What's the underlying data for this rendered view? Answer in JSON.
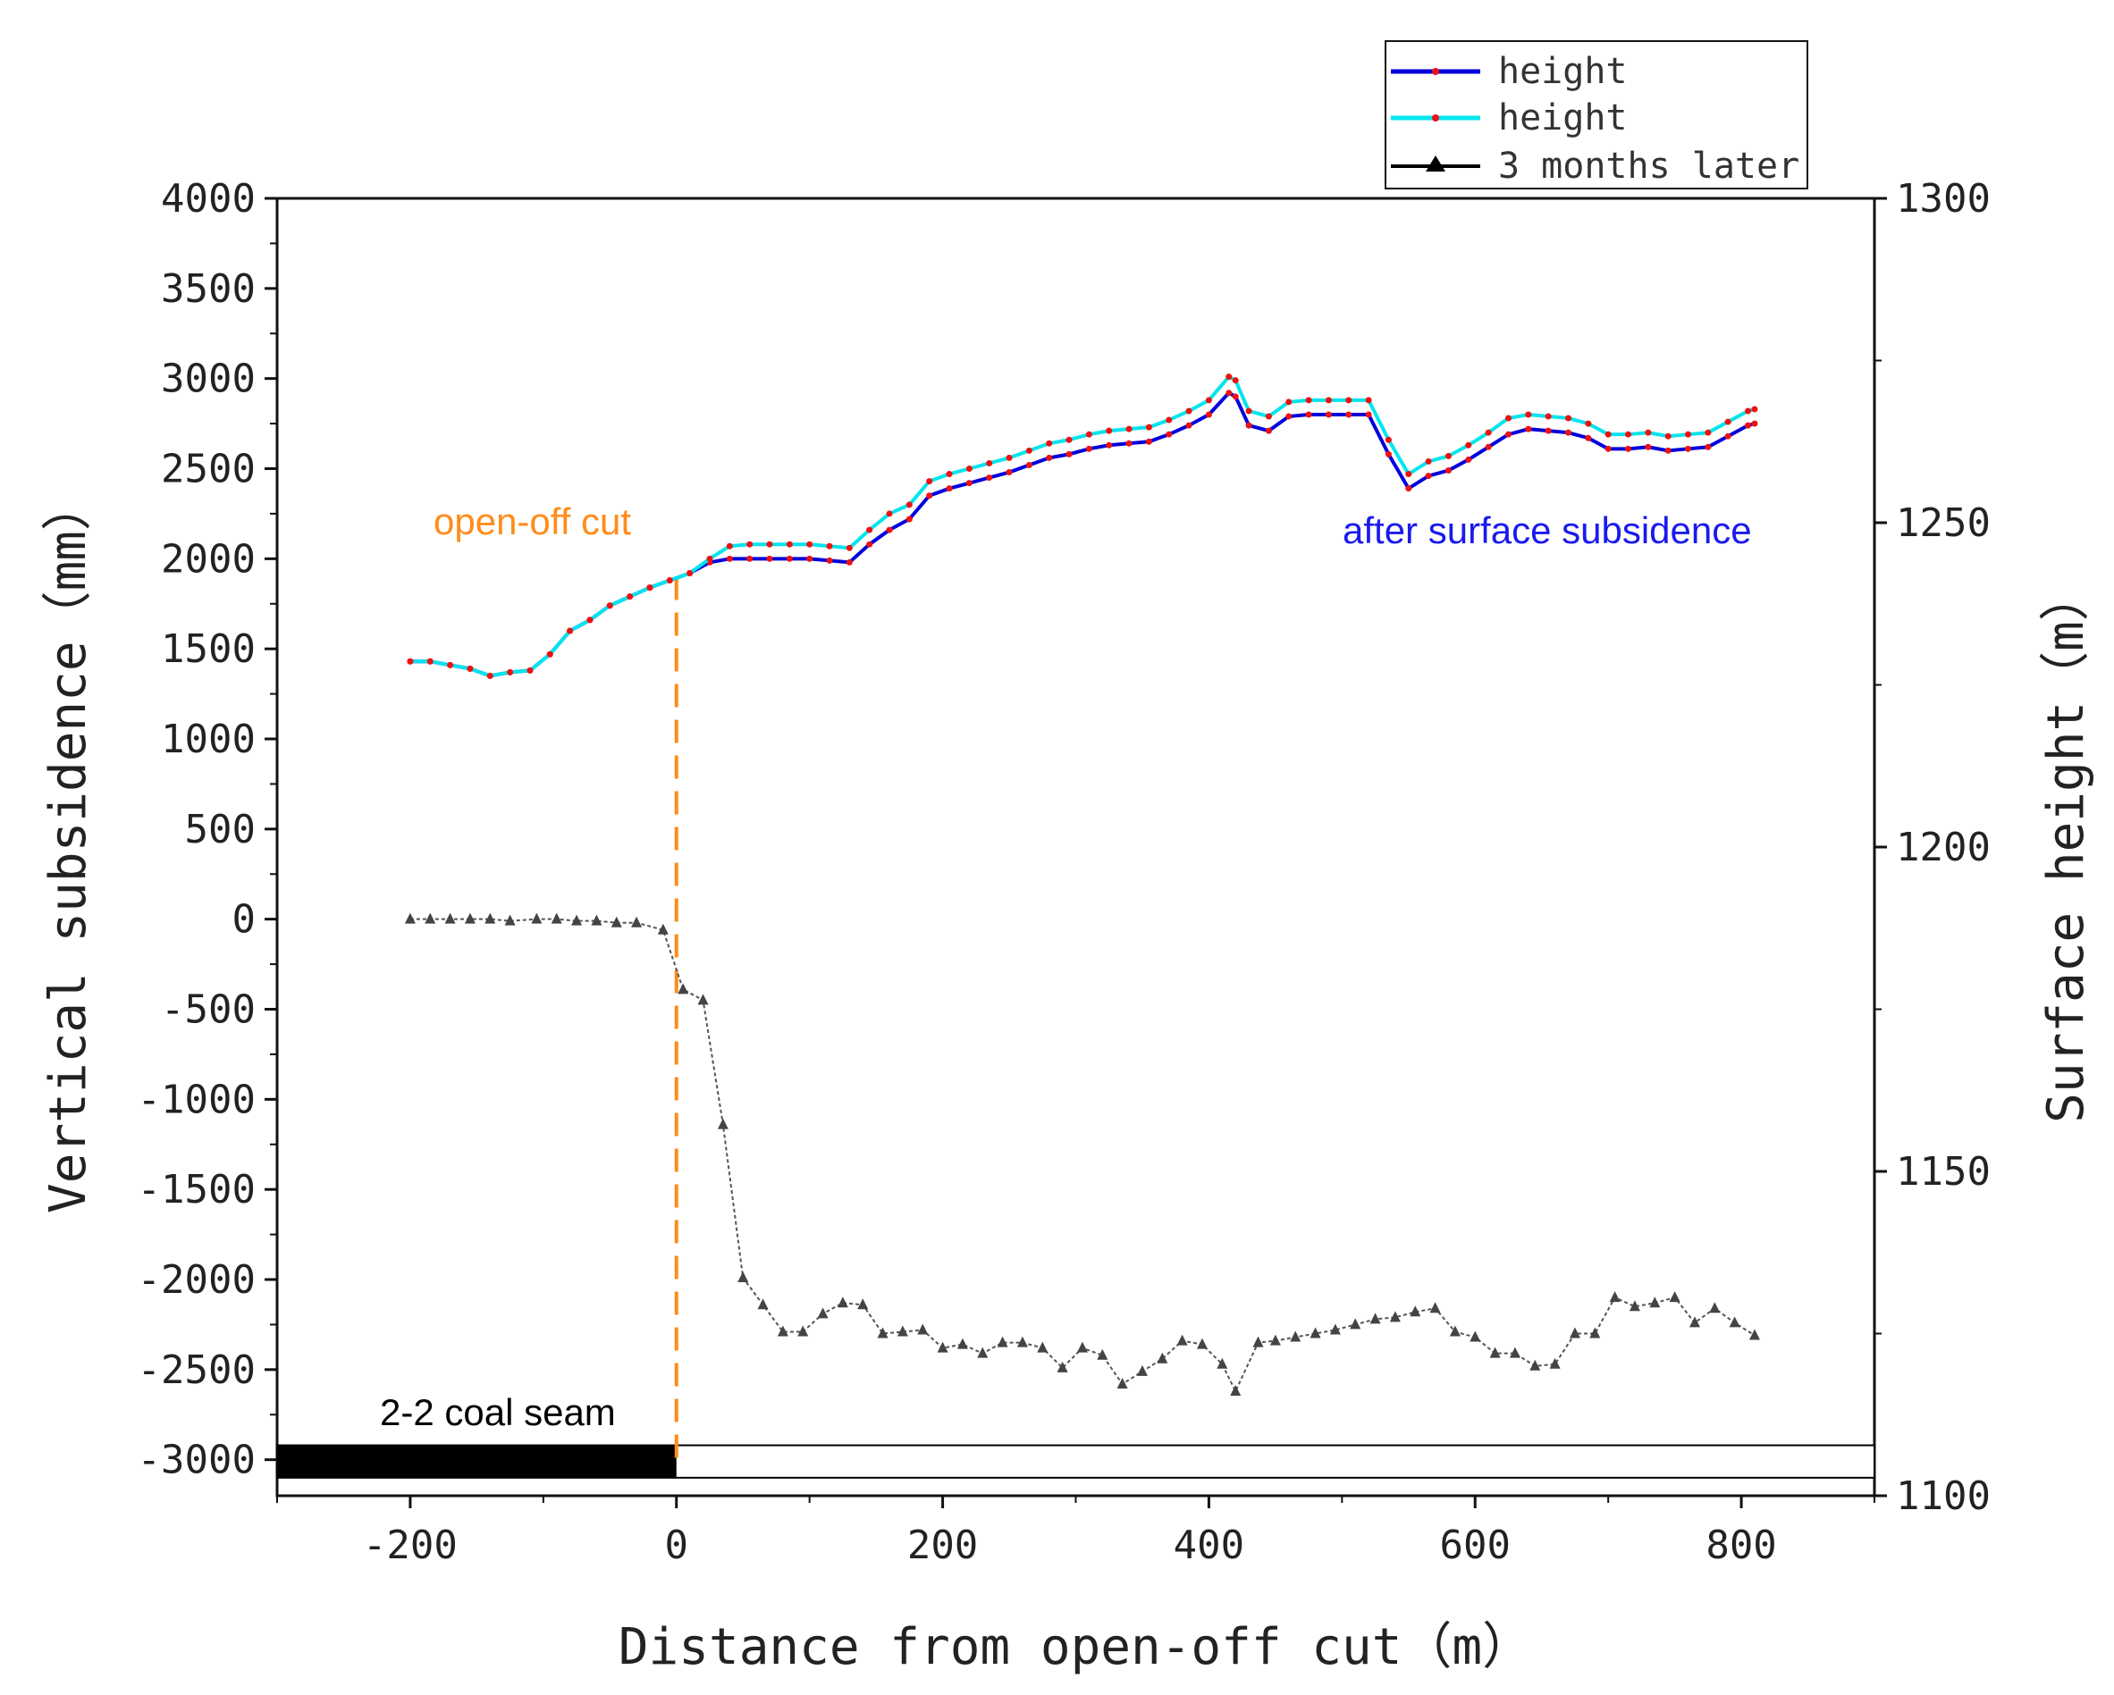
{
  "chart_data": {
    "type": "line",
    "x": [
      -200,
      -185,
      -170,
      -155,
      -140,
      -125,
      -110,
      -95,
      -80,
      -65,
      -50,
      -35,
      -20,
      -5,
      10,
      25,
      40,
      55,
      70,
      85,
      100,
      115,
      130,
      145,
      160,
      175,
      190,
      205,
      220,
      235,
      250,
      265,
      280,
      295,
      310,
      325,
      340,
      355,
      370,
      385,
      400,
      415,
      420,
      430,
      445,
      460,
      475,
      490,
      505,
      520,
      535,
      550,
      565,
      580,
      595,
      610,
      625,
      640,
      655,
      670,
      685,
      700,
      715,
      730,
      745,
      760,
      775,
      790,
      805,
      810
    ],
    "xlabel": "Distance from open-off cut（m）",
    "ylabel_left": "Vertical subsidence（mm）",
    "ylabel_right": "Surface height（m）",
    "xlim": [
      -300,
      900
    ],
    "ylim_left": [
      -3200,
      4000
    ],
    "ylim_right": [
      1100,
      1300
    ],
    "x_ticks": [
      "-200",
      "0",
      "200",
      "400",
      "600",
      "800"
    ],
    "left_ticks": [
      "4000",
      "3500",
      "3000",
      "2500",
      "2000",
      "1500",
      "1000",
      "500",
      "0",
      "-500",
      "-1000",
      "-1500",
      "-2000",
      "-2500",
      "-3000"
    ],
    "right_ticks": [
      "1300",
      "1250",
      "1200",
      "1150",
      "1100"
    ],
    "series": [
      {
        "name": "height",
        "axis": "left",
        "color": "#0000dd",
        "marker_color": "#ee1111",
        "values": [
          1430,
          1430,
          1410,
          1390,
          1350,
          1370,
          1380,
          1470,
          1600,
          1660,
          1740,
          1790,
          1840,
          1880,
          1920,
          1980,
          2000,
          2000,
          2000,
          2000,
          2000,
          1990,
          1980,
          2080,
          2160,
          2220,
          2350,
          2390,
          2420,
          2450,
          2480,
          2520,
          2560,
          2580,
          2610,
          2630,
          2640,
          2650,
          2690,
          2740,
          2800,
          2920,
          2900,
          2740,
          2710,
          2790,
          2800,
          2800,
          2800,
          2800,
          2580,
          2390,
          2460,
          2490,
          2550,
          2620,
          2690,
          2720,
          2710,
          2700,
          2670,
          2610,
          2610,
          2620,
          2600,
          2610,
          2620,
          2680,
          2740,
          2750
        ]
      },
      {
        "name": "height",
        "axis": "left",
        "color": "#00e5ee",
        "marker_color": "#ee1111",
        "values": [
          1430,
          1430,
          1410,
          1390,
          1350,
          1370,
          1380,
          1470,
          1600,
          1660,
          1740,
          1790,
          1840,
          1880,
          1920,
          2000,
          2070,
          2080,
          2080,
          2080,
          2080,
          2070,
          2060,
          2160,
          2250,
          2300,
          2430,
          2470,
          2500,
          2530,
          2560,
          2600,
          2640,
          2660,
          2690,
          2710,
          2720,
          2730,
          2770,
          2820,
          2880,
          3010,
          2990,
          2820,
          2790,
          2870,
          2880,
          2880,
          2880,
          2880,
          2660,
          2470,
          2540,
          2570,
          2630,
          2700,
          2780,
          2800,
          2790,
          2780,
          2750,
          2690,
          2690,
          2700,
          2680,
          2690,
          2700,
          2760,
          2820,
          2830
        ]
      },
      {
        "name": "3 months later",
        "axis": "left",
        "color": "#555555",
        "marker_color": "#444444",
        "x": [
          -200,
          -185,
          -170,
          -155,
          -140,
          -125,
          -105,
          -90,
          -75,
          -60,
          -45,
          -30,
          -10,
          5,
          20,
          35,
          50,
          65,
          80,
          95,
          110,
          125,
          140,
          155,
          170,
          185,
          200,
          215,
          230,
          245,
          260,
          275,
          290,
          305,
          320,
          335,
          350,
          365,
          380,
          395,
          410,
          420,
          437,
          450,
          465,
          480,
          495,
          510,
          525,
          540,
          555,
          570,
          585,
          600,
          615,
          630,
          645,
          660,
          675,
          690,
          705,
          720,
          735,
          750,
          765,
          780,
          795,
          810
        ],
        "values": [
          0,
          0,
          0,
          0,
          0,
          -10,
          0,
          0,
          -10,
          -10,
          -20,
          -20,
          -60,
          -390,
          -450,
          -1140,
          -1990,
          -2140,
          -2290,
          -2290,
          -2190,
          -2130,
          -2140,
          -2300,
          -2290,
          -2280,
          -2380,
          -2360,
          -2410,
          -2350,
          -2350,
          -2380,
          -2490,
          -2380,
          -2420,
          -2580,
          -2510,
          -2440,
          -2340,
          -2360,
          -2470,
          -2620,
          -2350,
          -2340,
          -2320,
          -2300,
          -2280,
          -2250,
          -2220,
          -2210,
          -2180,
          -2160,
          -2290,
          -2320,
          -2410,
          -2410,
          -2480,
          -2470,
          -2300,
          -2300,
          -2100,
          -2150,
          -2130,
          -2100,
          -2240,
          -2160,
          -2240,
          -2310
        ]
      }
    ],
    "legend": [
      "height",
      "height",
      "3 months later"
    ],
    "legend_position": "top-right",
    "annotations": {
      "open_off_cut_label": "open-off cut",
      "after_subsidence_label": "after surface subsidence",
      "coal_seam_label": "2-2 coal seam",
      "open_off_cut_color": "#ff8c1a",
      "after_subsidence_color": "#1a1aee"
    },
    "coal_seam": {
      "x_start": -300,
      "x_end": 900,
      "mined_until": 0
    }
  }
}
